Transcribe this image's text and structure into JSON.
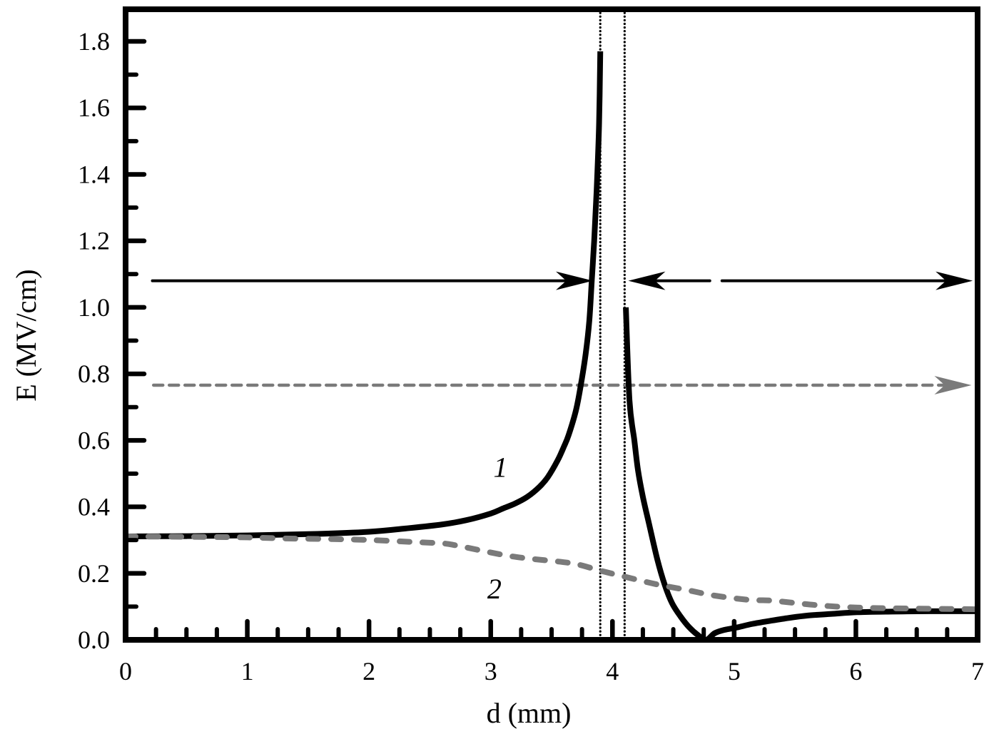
{
  "chart_data": {
    "type": "line",
    "title": "",
    "xlabel": "d (mm)",
    "ylabel": "E (MV/cm)",
    "xlim": [
      0,
      7
    ],
    "ylim": [
      0,
      1.8
    ],
    "x_ticks": [
      "0",
      "1",
      "2",
      "3",
      "4",
      "5",
      "6",
      "7"
    ],
    "y_ticks": [
      "0.0",
      "0.2",
      "0.4",
      "0.6",
      "0.8",
      "1.0",
      "1.2",
      "1.4",
      "1.6",
      "1.8"
    ],
    "grid": false,
    "legend": "none (curves labeled inline)",
    "series": [
      {
        "name": "1",
        "style": "solid black thick",
        "color": "#000000",
        "segments": [
          {
            "x": [
              0,
              0.5,
              1.0,
              1.5,
              2.0,
              2.3,
              2.6,
              2.8,
              3.0,
              3.1,
              3.2,
              3.3,
              3.4,
              3.47,
              3.55,
              3.6,
              3.64,
              3.7,
              3.74,
              3.78,
              3.81,
              3.83,
              3.85,
              3.87,
              3.89,
              3.9
            ],
            "y": [
              0.311,
              0.312,
              0.314,
              0.318,
              0.325,
              0.335,
              0.347,
              0.36,
              0.38,
              0.395,
              0.41,
              0.43,
              0.46,
              0.49,
              0.54,
              0.58,
              0.616,
              0.69,
              0.766,
              0.86,
              0.96,
              1.08,
              1.2,
              1.35,
              1.55,
              1.77
            ]
          },
          {
            "x": [
              4.11,
              4.14,
              4.18,
              4.21,
              4.25,
              4.3,
              4.37,
              4.43,
              4.49,
              4.56,
              4.63,
              4.7,
              4.77,
              4.84,
              4.92,
              5.02,
              5.15,
              5.31,
              5.45,
              5.6,
              5.8,
              6.01,
              6.3,
              6.6,
              7.0
            ],
            "y": [
              1.0,
              0.72,
              0.6,
              0.51,
              0.43,
              0.35,
              0.24,
              0.165,
              0.11,
              0.07,
              0.038,
              0.015,
              0.0,
              0.02,
              0.03,
              0.037,
              0.048,
              0.058,
              0.066,
              0.073,
              0.078,
              0.083,
              0.085,
              0.086,
              0.086
            ]
          }
        ],
        "label_position": {
          "x": 3.08,
          "y": 0.52
        }
      },
      {
        "name": "2",
        "style": "gray dashed thick",
        "color": "#7a7a7a",
        "segments": [
          {
            "x": [
              0,
              0.5,
              1.0,
              1.31,
              1.7,
              2.03,
              2.38,
              2.61,
              2.73,
              3.08,
              3.3,
              3.67,
              3.9,
              4.1,
              4.35,
              4.61,
              4.84,
              5.13,
              5.31,
              5.66,
              6.01,
              6.5,
              7.0
            ],
            "y": [
              0.311,
              0.31,
              0.308,
              0.305,
              0.303,
              0.3,
              0.294,
              0.29,
              0.283,
              0.257,
              0.245,
              0.23,
              0.208,
              0.19,
              0.168,
              0.15,
              0.133,
              0.12,
              0.118,
              0.105,
              0.097,
              0.094,
              0.092
            ]
          }
        ],
        "label_position": {
          "x": 3.03,
          "y": 0.155
        }
      }
    ],
    "annotations": [
      {
        "type": "vertical-dotted-line",
        "x": 3.9,
        "color": "#000000"
      },
      {
        "type": "vertical-dotted-line",
        "x": 4.1,
        "color": "#000000"
      },
      {
        "type": "arrow",
        "direction": "right",
        "style": "solid black",
        "from_x": 0.22,
        "to_x": 3.84,
        "y": 1.08
      },
      {
        "type": "arrow",
        "direction": "left",
        "style": "solid black",
        "from_x": 4.8,
        "to_x": 4.13,
        "y": 1.08
      },
      {
        "type": "arrow",
        "direction": "right",
        "style": "solid black",
        "from_x": 4.9,
        "to_x": 6.96,
        "y": 1.08
      },
      {
        "type": "arrow",
        "direction": "right",
        "style": "gray dashed",
        "from_x": 0.23,
        "to_x": 6.95,
        "y": 0.766
      }
    ]
  },
  "labels": {
    "curve1": "1",
    "curve2": "2",
    "xlabel": "d (mm)",
    "ylabel": "E (MV/cm)"
  }
}
